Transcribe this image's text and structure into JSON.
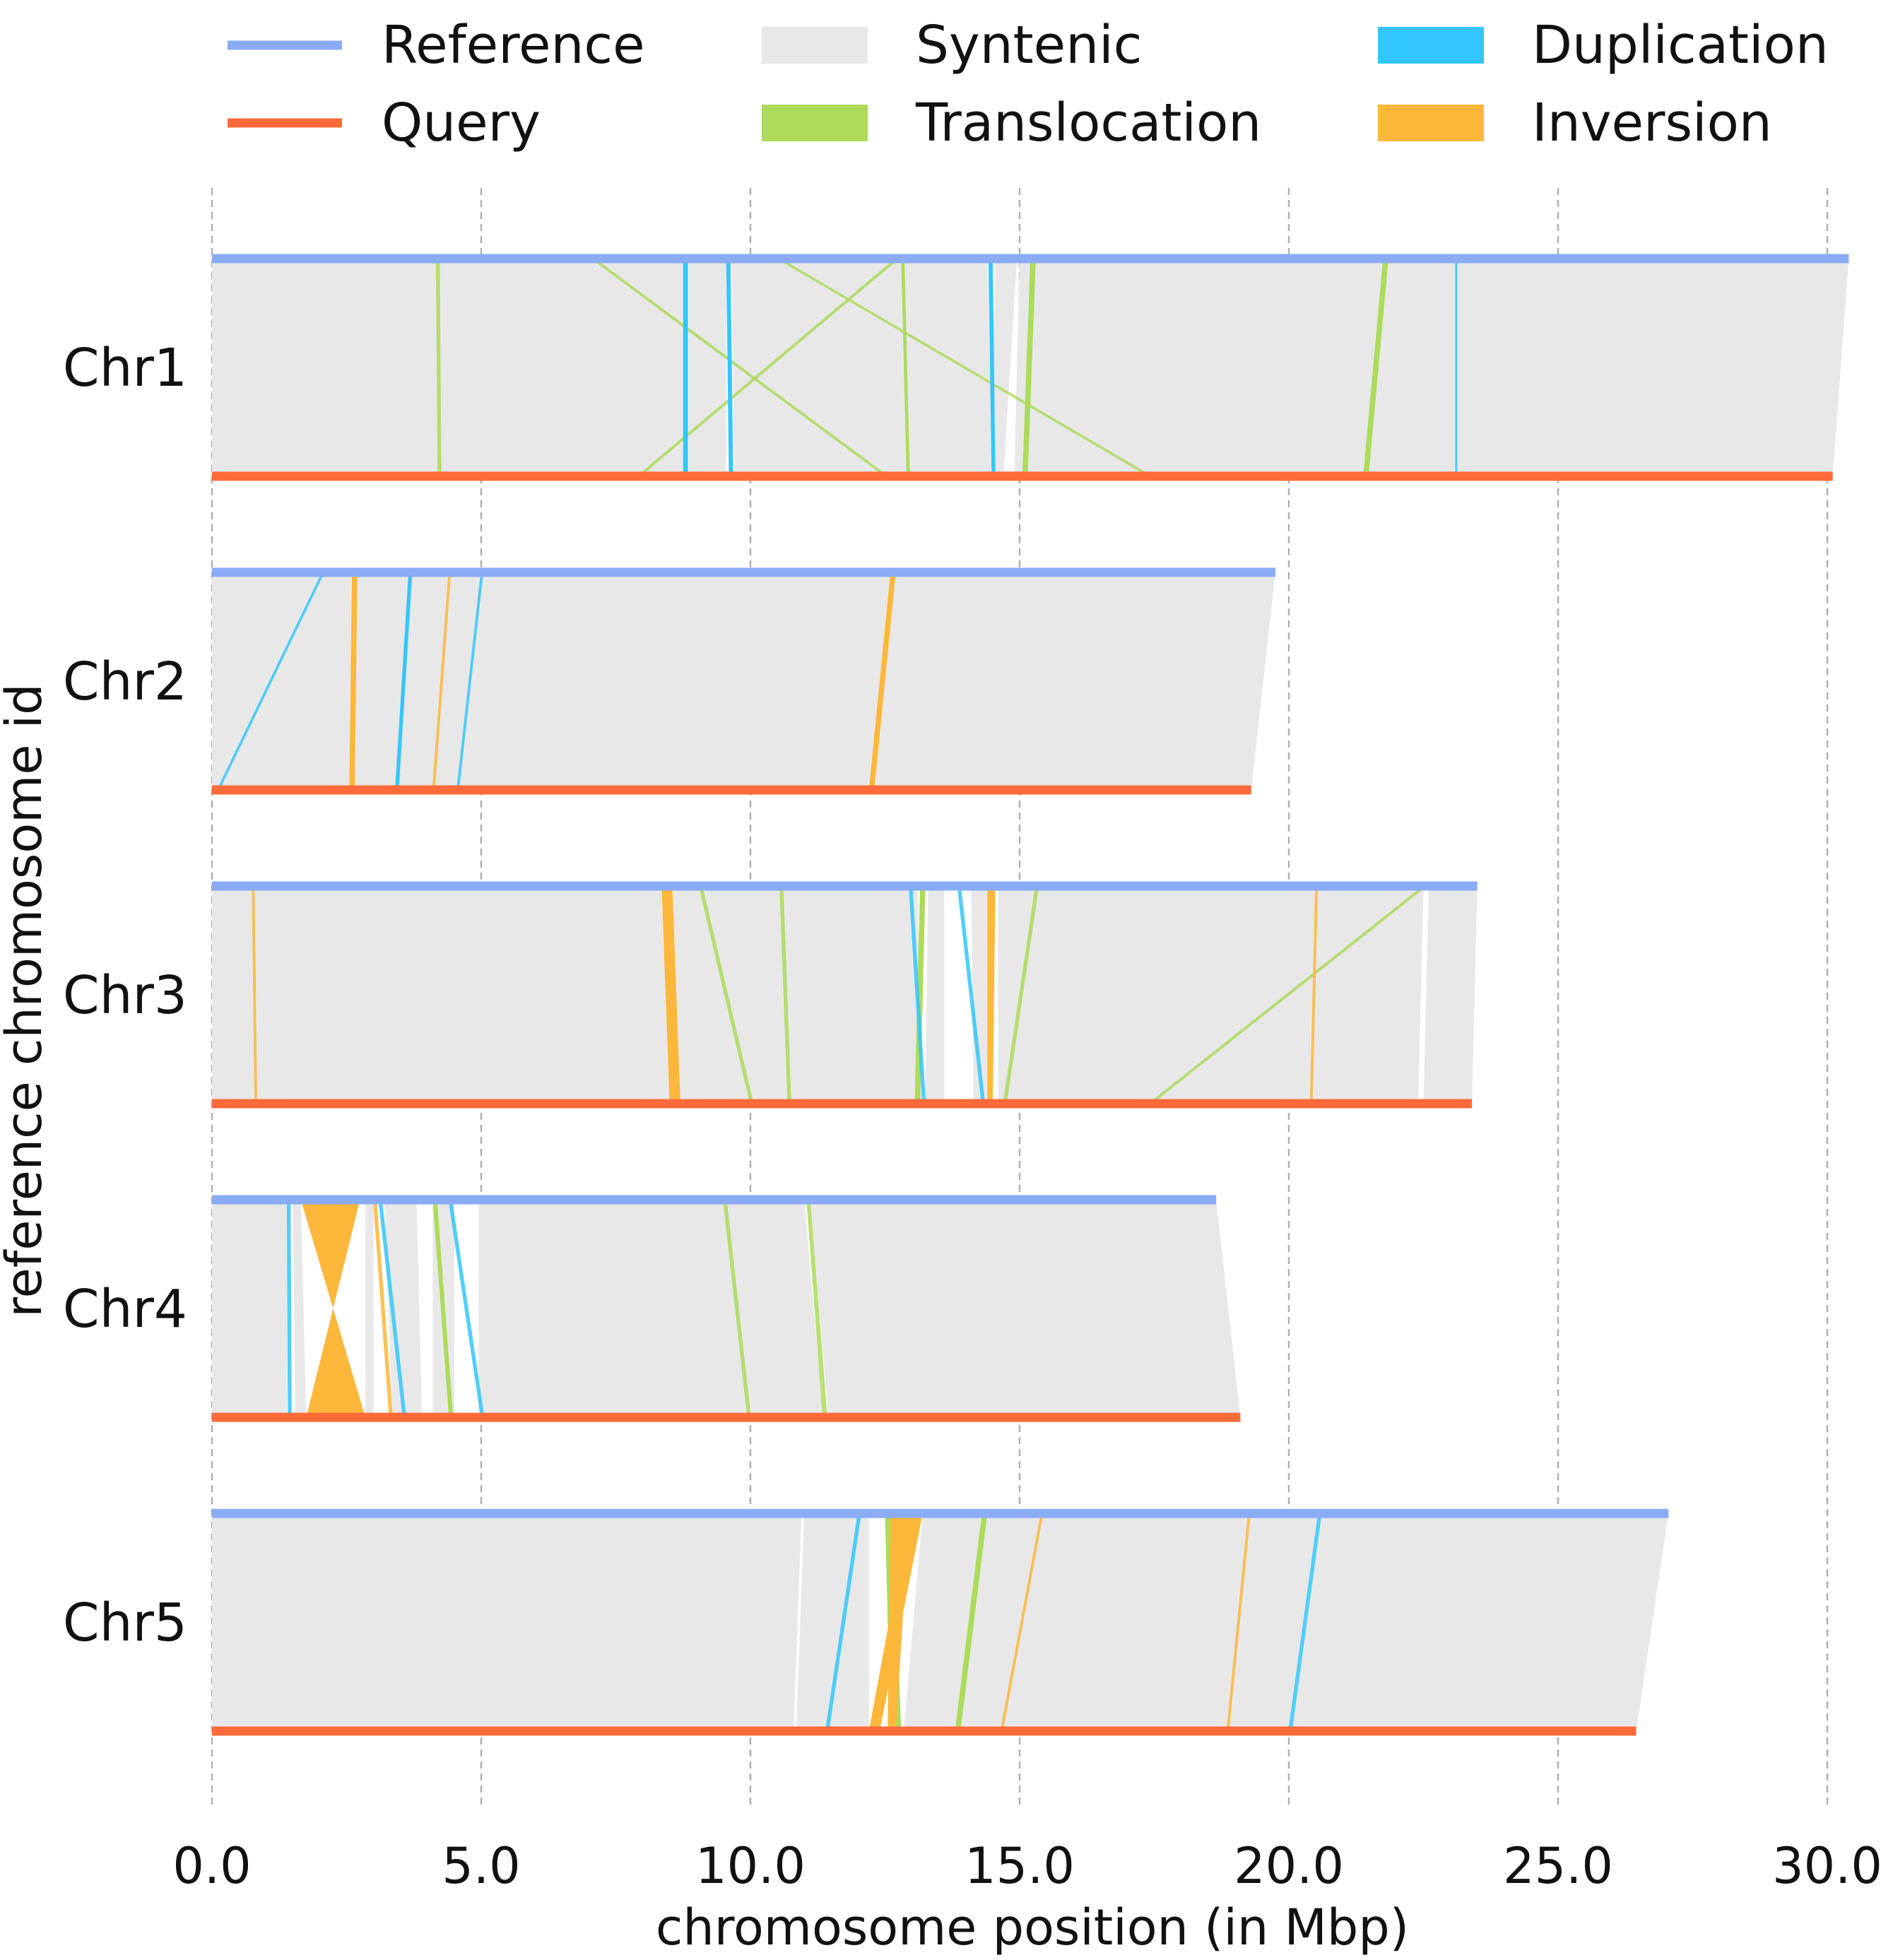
{
  "chart_data": {
    "type": "synteny",
    "xlabel": "chromosome position (in Mbp)",
    "ylabel": "reference chromosome id",
    "xlim": [
      0,
      31
    ],
    "xticks": [
      0,
      5,
      10,
      15,
      20,
      25,
      30
    ],
    "xtick_labels": [
      "0.0",
      "5.0",
      "10.0",
      "15.0",
      "20.0",
      "25.0",
      "30.0"
    ],
    "grid": "vertical dashed",
    "legend": {
      "placement": "top",
      "entries": [
        {
          "label": "Reference",
          "kind": "line",
          "color": "#8aacf5"
        },
        {
          "label": "Syntenic",
          "kind": "patch",
          "color": "#e8e8e8"
        },
        {
          "label": "Duplication",
          "kind": "patch",
          "color": "#33c6fc"
        },
        {
          "label": "Query",
          "kind": "line",
          "color": "#ff6a3a"
        },
        {
          "label": "Translocation",
          "kind": "patch",
          "color": "#addb5a"
        },
        {
          "label": "Inversion",
          "kind": "patch",
          "color": "#fdb73a"
        }
      ]
    },
    "colors": {
      "reference": "#8aacf5",
      "query": "#ff6a3a",
      "syntenic": "#e8e8e8",
      "duplication": "#33c6fc",
      "translocation": "#addb5a",
      "inversion": "#fdb73a",
      "grid": "#b0b0b0"
    },
    "chromosomes": [
      {
        "id": "Chr1",
        "ref_len": 30.4,
        "qry_len": 30.1,
        "blocks": [
          {
            "type": "syntenic",
            "r": [
              0,
              8.75
            ],
            "q": [
              0,
              8.75
            ]
          },
          {
            "type": "syntenic",
            "r": [
              8.85,
              9.55
            ],
            "q": [
              8.85,
              9.55
            ]
          },
          {
            "type": "syntenic",
            "r": [
              9.65,
              14.4
            ],
            "q": [
              9.7,
              14.5
            ]
          },
          {
            "type": "syntenic",
            "r": [
              14.55,
              14.95
            ],
            "q": [
              14.45,
              14.7
            ]
          },
          {
            "type": "syntenic",
            "r": [
              15.0,
              30.4
            ],
            "q": [
              14.9,
              30.1
            ]
          },
          {
            "type": "duplication",
            "r": [
              8.75,
              8.84
            ],
            "q": [
              8.75,
              8.84
            ]
          },
          {
            "type": "duplication",
            "r": [
              9.55,
              9.63
            ],
            "q": [
              9.6,
              9.68
            ]
          },
          {
            "type": "duplication",
            "r": [
              14.42,
              14.5
            ],
            "q": [
              14.48,
              14.55
            ]
          },
          {
            "type": "duplication",
            "r": [
              23.1,
              23.12
            ],
            "q": [
              23.1,
              23.12
            ]
          },
          {
            "type": "translocation",
            "r": [
              4.17,
              4.22
            ],
            "q": [
              4.2,
              4.25
            ]
          },
          {
            "type": "translocation",
            "r": [
              12.8,
              12.86
            ],
            "q": [
              12.9,
              12.96
            ]
          },
          {
            "type": "translocation",
            "r": [
              15.2,
              15.3
            ],
            "q": [
              15.05,
              15.15
            ]
          },
          {
            "type": "translocation",
            "r": [
              21.75,
              21.85
            ],
            "q": [
              21.38,
              21.48
            ]
          },
          {
            "type": "translocation",
            "r": [
              7.05,
              7.1
            ],
            "q": [
              12.5,
              12.55
            ]
          },
          {
            "type": "translocation",
            "r": [
              12.7,
              12.75
            ],
            "q": [
              7.9,
              7.95
            ]
          },
          {
            "type": "translocation",
            "r": [
              10.5,
              10.55
            ],
            "q": [
              17.4,
              17.45
            ]
          }
        ]
      },
      {
        "id": "Chr2",
        "ref_len": 19.75,
        "qry_len": 19.3,
        "blocks": [
          {
            "type": "syntenic",
            "r": [
              0,
              2.6
            ],
            "q": [
              0,
              2.55
            ]
          },
          {
            "type": "syntenic",
            "r": [
              2.7,
              12.6
            ],
            "q": [
              2.6,
              12.2
            ]
          },
          {
            "type": "syntenic",
            "r": [
              12.7,
              19.75
            ],
            "q": [
              12.3,
              19.3
            ]
          },
          {
            "type": "inversion",
            "r": [
              2.6,
              2.7
            ],
            "q": [
              2.55,
              2.65
            ]
          },
          {
            "type": "inversion",
            "r": [
              12.6,
              12.7
            ],
            "q": [
              12.2,
              12.3
            ]
          },
          {
            "type": "duplication",
            "r": [
              3.65,
              3.72
            ],
            "q": [
              3.4,
              3.47
            ]
          },
          {
            "type": "duplication",
            "r": [
              2.05,
              2.08
            ],
            "q": [
              0.1,
              0.13
            ]
          },
          {
            "type": "duplication",
            "r": [
              5.0,
              5.03
            ],
            "q": [
              4.55,
              4.58
            ]
          },
          {
            "type": "inversion",
            "r": [
              4.4,
              4.43
            ],
            "q": [
              4.1,
              4.13
            ]
          }
        ]
      },
      {
        "id": "Chr3",
        "ref_len": 23.5,
        "qry_len": 23.4,
        "blocks": [
          {
            "type": "syntenic",
            "r": [
              0,
              8.35
            ],
            "q": [
              0,
              8.5
            ]
          },
          {
            "type": "syntenic",
            "r": [
              8.55,
              13.1
            ],
            "q": [
              8.7,
              13.2
            ]
          },
          {
            "type": "syntenic",
            "r": [
              13.3,
              13.6
            ],
            "q": [
              13.25,
              13.6
            ]
          },
          {
            "type": "syntenic",
            "r": [
              14.1,
              14.4
            ],
            "q": [
              14.15,
              14.4
            ]
          },
          {
            "type": "syntenic",
            "r": [
              14.6,
              22.5
            ],
            "q": [
              14.6,
              22.4
            ]
          },
          {
            "type": "syntenic",
            "r": [
              22.6,
              23.5
            ],
            "q": [
              22.5,
              23.4
            ]
          },
          {
            "type": "inversion",
            "r": [
              8.35,
              8.55
            ],
            "q": [
              8.5,
              8.7
            ]
          },
          {
            "type": "inversion",
            "r": [
              14.4,
              14.55
            ],
            "q": [
              14.4,
              14.5
            ]
          },
          {
            "type": "inversion",
            "r": [
              0.75,
              0.78
            ],
            "q": [
              0.8,
              0.83
            ]
          },
          {
            "type": "inversion",
            "r": [
              20.5,
              20.53
            ],
            "q": [
              20.4,
              20.43
            ]
          },
          {
            "type": "translocation",
            "r": [
              13.15,
              13.25
            ],
            "q": [
              13.05,
              13.15
            ]
          },
          {
            "type": "translocation",
            "r": [
              10.55,
              10.6
            ],
            "q": [
              10.7,
              10.75
            ]
          },
          {
            "type": "translocation",
            "r": [
              9.05,
              9.1
            ],
            "q": [
              10.0,
              10.05
            ]
          },
          {
            "type": "translocation",
            "r": [
              15.3,
              15.35
            ],
            "q": [
              14.7,
              14.75
            ]
          },
          {
            "type": "translocation",
            "r": [
              22.5,
              22.55
            ],
            "q": [
              17.4,
              17.45
            ]
          },
          {
            "type": "duplication",
            "r": [
              12.95,
              13.0
            ],
            "q": [
              13.2,
              13.25
            ]
          },
          {
            "type": "duplication",
            "r": [
              13.85,
              13.9
            ],
            "q": [
              14.3,
              14.35
            ]
          }
        ]
      },
      {
        "id": "Chr4",
        "ref_len": 18.65,
        "qry_len": 19.1,
        "blocks": [
          {
            "type": "syntenic",
            "r": [
              0,
              1.4
            ],
            "q": [
              0,
              1.4
            ]
          },
          {
            "type": "syntenic",
            "r": [
              1.5,
              1.65
            ],
            "q": [
              1.55,
              1.75
            ]
          },
          {
            "type": "syntenic",
            "r": [
              2.85,
              3.0
            ],
            "q": [
              2.85,
              3.0
            ]
          },
          {
            "type": "syntenic",
            "r": [
              3.2,
              3.8
            ],
            "q": [
              3.35,
              3.9
            ]
          },
          {
            "type": "syntenic",
            "r": [
              4.1,
              4.5
            ],
            "q": [
              4.1,
              4.5
            ]
          },
          {
            "type": "syntenic",
            "r": [
              4.95,
              11.0
            ],
            "q": [
              4.95,
              11.35
            ]
          },
          {
            "type": "syntenic",
            "r": [
              11.1,
              18.65
            ],
            "q": [
              11.45,
              19.1
            ]
          },
          {
            "type": "inversion",
            "r": [
              1.65,
              2.75
            ],
            "q": [
              2.85,
              1.75
            ],
            "inverted": true
          },
          {
            "type": "translocation",
            "r": [
              4.1,
              4.18
            ],
            "q": [
              4.4,
              4.48
            ]
          },
          {
            "type": "translocation",
            "r": [
              9.5,
              9.55
            ],
            "q": [
              9.95,
              10.0
            ]
          },
          {
            "type": "translocation",
            "r": [
              11.05,
              11.1
            ],
            "q": [
              11.35,
              11.42
            ]
          },
          {
            "type": "duplication",
            "r": [
              1.4,
              1.45
            ],
            "q": [
              1.42,
              1.47
            ]
          },
          {
            "type": "duplication",
            "r": [
              3.1,
              3.15
            ],
            "q": [
              3.55,
              3.6
            ]
          },
          {
            "type": "duplication",
            "r": [
              4.4,
              4.45
            ],
            "q": [
              5.0,
              5.05
            ]
          },
          {
            "type": "inversion",
            "r": [
              3.0,
              3.05
            ],
            "q": [
              3.3,
              3.35
            ]
          }
        ]
      },
      {
        "id": "Chr5",
        "ref_len": 27.05,
        "qry_len": 26.45,
        "blocks": [
          {
            "type": "syntenic",
            "r": [
              0,
              10.95
            ],
            "q": [
              0,
              10.8
            ]
          },
          {
            "type": "syntenic",
            "r": [
              11.0,
              12.2
            ],
            "q": [
              10.85,
              12.2
            ]
          },
          {
            "type": "syntenic",
            "r": [
              13.2,
              20.55
            ],
            "q": [
              12.85,
              20.0
            ]
          },
          {
            "type": "syntenic",
            "r": [
              20.6,
              27.05
            ],
            "q": [
              20.05,
              26.45
            ]
          },
          {
            "type": "inversion",
            "r": [
              12.6,
              12.95
            ],
            "q": [
              12.55,
              12.7
            ]
          },
          {
            "type": "inversion",
            "r": [
              12.95,
              13.2
            ],
            "q": [
              12.2,
              12.4
            ]
          },
          {
            "type": "translocation",
            "r": [
              12.5,
              12.65
            ],
            "q": [
              12.6,
              12.8
            ]
          },
          {
            "type": "translocation",
            "r": [
              14.3,
              14.4
            ],
            "q": [
              13.8,
              13.9
            ]
          },
          {
            "type": "duplication",
            "r": [
              20.55,
              20.6
            ],
            "q": [
              20.0,
              20.05
            ]
          },
          {
            "type": "duplication",
            "r": [
              12.0,
              12.05
            ],
            "q": [
              11.4,
              11.45
            ]
          },
          {
            "type": "inversion",
            "r": [
              19.25,
              19.28
            ],
            "q": [
              18.85,
              18.88
            ]
          },
          {
            "type": "inversion",
            "r": [
              15.4,
              15.43
            ],
            "q": [
              14.65,
              14.68
            ]
          }
        ]
      }
    ]
  }
}
